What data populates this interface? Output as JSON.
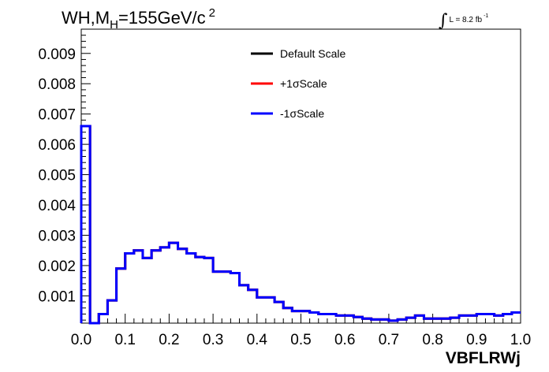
{
  "header": {
    "title_main": "WH,M",
    "title_sub": "H",
    "title_rest": "=155GeV/c",
    "title_sup": "2",
    "lumi_text": "L = 8.2 fb",
    "lumi_sup": "-1"
  },
  "chart_data": {
    "type": "histogram",
    "title": "WH,M_H=155GeV/c^2",
    "xlabel": "VBFLRWj",
    "ylabel": "",
    "xlim": [
      0.0,
      1.0
    ],
    "ylim": [
      0.0001,
      0.0098
    ],
    "x_ticks": [
      "0.0",
      "0.1",
      "0.2",
      "0.3",
      "0.4",
      "0.5",
      "0.6",
      "0.7",
      "0.8",
      "0.9",
      "1.0"
    ],
    "y_ticks": [
      "0.001",
      "0.002",
      "0.003",
      "0.004",
      "0.005",
      "0.006",
      "0.007",
      "0.008",
      "0.009"
    ],
    "bin_width": 0.02,
    "bin_edges_start": 0.0,
    "legend_position": "top-center",
    "series": [
      {
        "name": "Default Scale",
        "color": "#000000",
        "values": [
          0.0066,
          0.0001,
          0.0004,
          0.00085,
          0.0019,
          0.0024,
          0.0025,
          0.00225,
          0.0025,
          0.0026,
          0.00275,
          0.00255,
          0.0024,
          0.00228,
          0.00225,
          0.0018,
          0.0018,
          0.00175,
          0.00135,
          0.0012,
          0.00095,
          0.00095,
          0.0008,
          0.0006,
          0.0005,
          0.0005,
          0.00045,
          0.0004,
          0.0004,
          0.00035,
          0.00035,
          0.0003,
          0.00025,
          0.00022,
          0.00022,
          0.00018,
          0.00022,
          0.00028,
          0.00035,
          0.00025,
          0.00025,
          0.00025,
          0.00028,
          0.00035,
          0.00035,
          0.0004,
          0.0004,
          0.00035,
          0.0004,
          0.00045
        ]
      },
      {
        "name": "+1σScale",
        "color": "#ff0000",
        "values": [
          0.0066,
          0.0001,
          0.0004,
          0.00085,
          0.0019,
          0.0024,
          0.0025,
          0.00225,
          0.0025,
          0.0026,
          0.00275,
          0.00255,
          0.0024,
          0.00228,
          0.00225,
          0.0018,
          0.0018,
          0.00175,
          0.00135,
          0.0012,
          0.00095,
          0.00095,
          0.0008,
          0.0006,
          0.0005,
          0.0005,
          0.00045,
          0.0004,
          0.0004,
          0.00035,
          0.00035,
          0.0003,
          0.00025,
          0.00022,
          0.00022,
          0.00018,
          0.00022,
          0.00028,
          0.00035,
          0.00025,
          0.00025,
          0.00025,
          0.00028,
          0.00035,
          0.00035,
          0.0004,
          0.0004,
          0.00035,
          0.0004,
          0.00045
        ]
      },
      {
        "name": "-1σScale",
        "color": "#0000ff",
        "values": [
          0.0066,
          0.0001,
          0.0004,
          0.00085,
          0.0019,
          0.0024,
          0.0025,
          0.00225,
          0.0025,
          0.0026,
          0.00275,
          0.00255,
          0.0024,
          0.00228,
          0.00225,
          0.0018,
          0.0018,
          0.00175,
          0.00135,
          0.0012,
          0.00095,
          0.00095,
          0.0008,
          0.0006,
          0.0005,
          0.0005,
          0.00045,
          0.0004,
          0.0004,
          0.00035,
          0.00035,
          0.0003,
          0.00025,
          0.00022,
          0.00022,
          0.00018,
          0.00022,
          0.00028,
          0.00035,
          0.00025,
          0.00025,
          0.00025,
          0.00028,
          0.00035,
          0.00035,
          0.0004,
          0.0004,
          0.00035,
          0.0004,
          0.00045
        ]
      }
    ]
  }
}
